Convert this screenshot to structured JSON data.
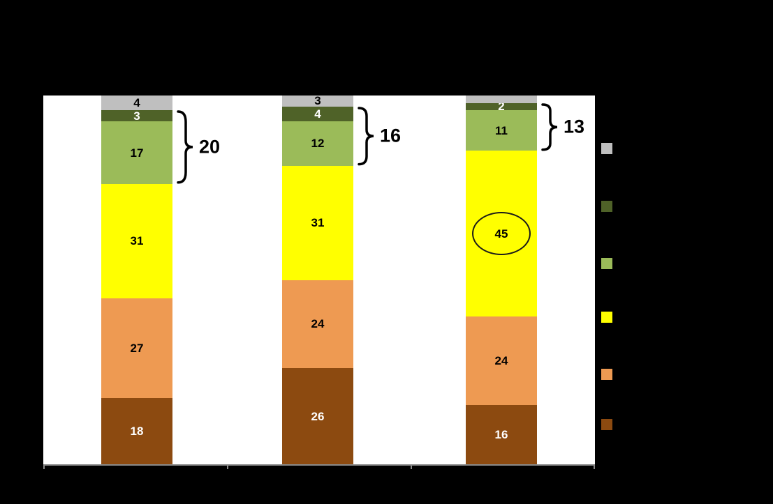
{
  "chart_data": {
    "type": "bar",
    "subtype": "stacked-column-percent",
    "title": "",
    "categories": [
      "",
      "",
      ""
    ],
    "ylim": [
      0,
      100
    ],
    "grid": false,
    "series": [
      {
        "name": "brown",
        "color": "#8C4A10",
        "label_color": "#FFFFFF",
        "values": [
          18,
          26,
          16
        ],
        "show_labels": [
          true,
          true,
          true
        ]
      },
      {
        "name": "orange",
        "color": "#EE9A52",
        "label_color": "#000000",
        "values": [
          27,
          24,
          24
        ],
        "show_labels": [
          true,
          true,
          true
        ]
      },
      {
        "name": "yellow",
        "color": "#FFFF00",
        "label_color": "#000000",
        "values": [
          31,
          31,
          45
        ],
        "show_labels": [
          true,
          true,
          true
        ]
      },
      {
        "name": "light-green",
        "color": "#9BBB59",
        "label_color": "#000000",
        "values": [
          17,
          12,
          11
        ],
        "show_labels": [
          true,
          true,
          true
        ]
      },
      {
        "name": "dark-green",
        "color": "#4F6228",
        "label_color": "#FFFFFF",
        "values": [
          3,
          4,
          2
        ],
        "show_labels": [
          true,
          true,
          true
        ]
      },
      {
        "name": "gray",
        "color": "#BFBFBF",
        "label_color": "#000000",
        "values": [
          4,
          3,
          2
        ],
        "show_labels": [
          true,
          true,
          false
        ]
      }
    ],
    "annotations": {
      "brackets": [
        {
          "bar": 0,
          "label": "20",
          "spans_series": [
            "light-green",
            "dark-green"
          ]
        },
        {
          "bar": 1,
          "label": "16",
          "spans_series": [
            "light-green",
            "dark-green"
          ]
        },
        {
          "bar": 2,
          "label": "13",
          "spans_series": [
            "light-green",
            "dark-green"
          ]
        }
      ],
      "circle": {
        "bar": 2,
        "series": "yellow",
        "value": 45
      }
    },
    "legend": {
      "position": "right",
      "swatch_colors": [
        "#BFBFBF",
        "#4F6228",
        "#9BBB59",
        "#FFFF00",
        "#EE9A52",
        "#8C4A10"
      ]
    },
    "colors": {
      "background": "#000000",
      "plot_background": "#FFFFFF",
      "axis": "#8A8A8A"
    }
  }
}
